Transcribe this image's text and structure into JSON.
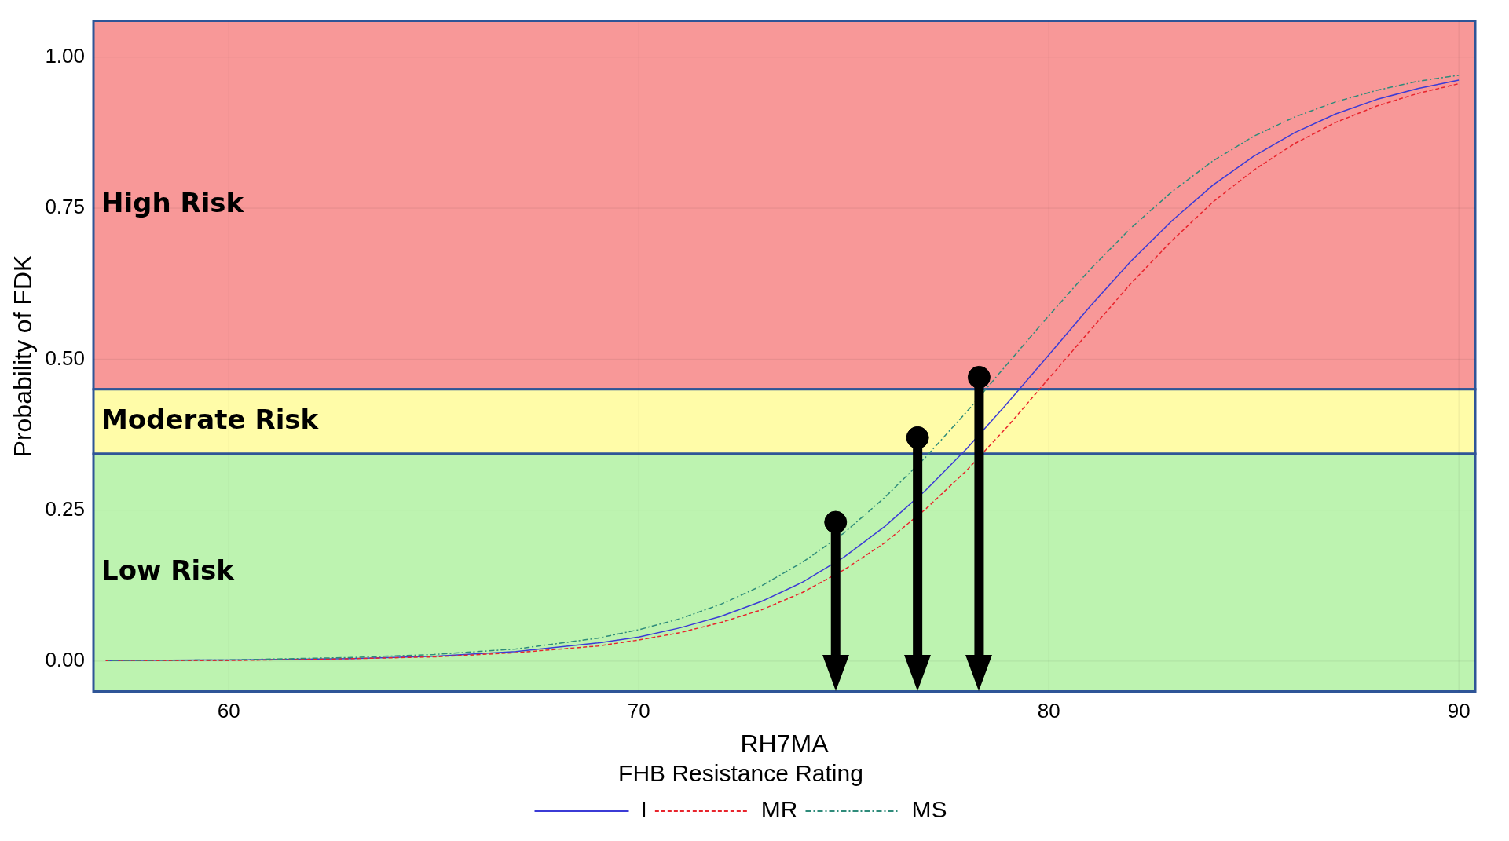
{
  "chart_data": {
    "type": "line",
    "xlabel": "RH7MA",
    "ylabel": "Probability of FDK",
    "legend_title": "FHB Resistance Rating",
    "legend": "bottom",
    "grid": true,
    "xlim": [
      56.7,
      90.4
    ],
    "xticks": [
      60,
      70,
      80,
      90
    ],
    "ylim": [
      -0.05,
      1.06
    ],
    "yticks": [
      {
        "value": 0,
        "label": "0.00"
      },
      {
        "value": 0.25,
        "label": "0.25"
      },
      {
        "value": 0.5,
        "label": "0.50"
      },
      {
        "value": 0.75,
        "label": "0.75"
      },
      {
        "value": 1,
        "label": "1.00"
      }
    ],
    "x": [
      57,
      60,
      63,
      65,
      67,
      69,
      70,
      71,
      72,
      73,
      74,
      75,
      76,
      77,
      78,
      79,
      80,
      81,
      82,
      83,
      84,
      85,
      86,
      87,
      88,
      89,
      90
    ],
    "series": [
      {
        "name": "I",
        "color": "#3b3bd6",
        "line_style": "solid",
        "values": [
          0.001,
          0.002,
          0.004,
          0.008,
          0.016,
          0.03,
          0.04,
          0.055,
          0.074,
          0.099,
          0.131,
          0.172,
          0.223,
          0.283,
          0.352,
          0.428,
          0.507,
          0.587,
          0.662,
          0.729,
          0.788,
          0.836,
          0.875,
          0.906,
          0.93,
          0.948,
          0.962
        ]
      },
      {
        "name": "MR",
        "color": "#e8242c",
        "line_style": "dashed",
        "values": [
          0.001,
          0.001,
          0.004,
          0.007,
          0.014,
          0.025,
          0.035,
          0.047,
          0.064,
          0.085,
          0.114,
          0.151,
          0.196,
          0.252,
          0.316,
          0.389,
          0.468,
          0.547,
          0.625,
          0.696,
          0.76,
          0.813,
          0.857,
          0.892,
          0.919,
          0.94,
          0.956
        ]
      },
      {
        "name": "MS",
        "color": "#2e8b7a",
        "line_style": "dashdot",
        "values": [
          0.001,
          0.002,
          0.006,
          0.011,
          0.02,
          0.038,
          0.052,
          0.07,
          0.094,
          0.125,
          0.164,
          0.212,
          0.271,
          0.338,
          0.413,
          0.493,
          0.572,
          0.648,
          0.717,
          0.777,
          0.828,
          0.869,
          0.901,
          0.926,
          0.945,
          0.96,
          0.97
        ]
      },
      {
        "type": "lollipop",
        "color": "#000000",
        "x": [
          74.8,
          76.8,
          78.3
        ],
        "values": [
          0.23,
          0.37,
          0.47
        ]
      }
    ],
    "bands": [
      {
        "axis": "y",
        "from": 0.45,
        "to": 1.06,
        "label": "High Risk",
        "color": "#f89898"
      },
      {
        "axis": "y",
        "from": 0.343,
        "to": 0.45,
        "label": "Moderate Risk",
        "color": "#fffca8"
      },
      {
        "axis": "y",
        "from": -0.05,
        "to": 0.343,
        "label": "Low Risk",
        "color": "#bdf3b0"
      }
    ]
  }
}
